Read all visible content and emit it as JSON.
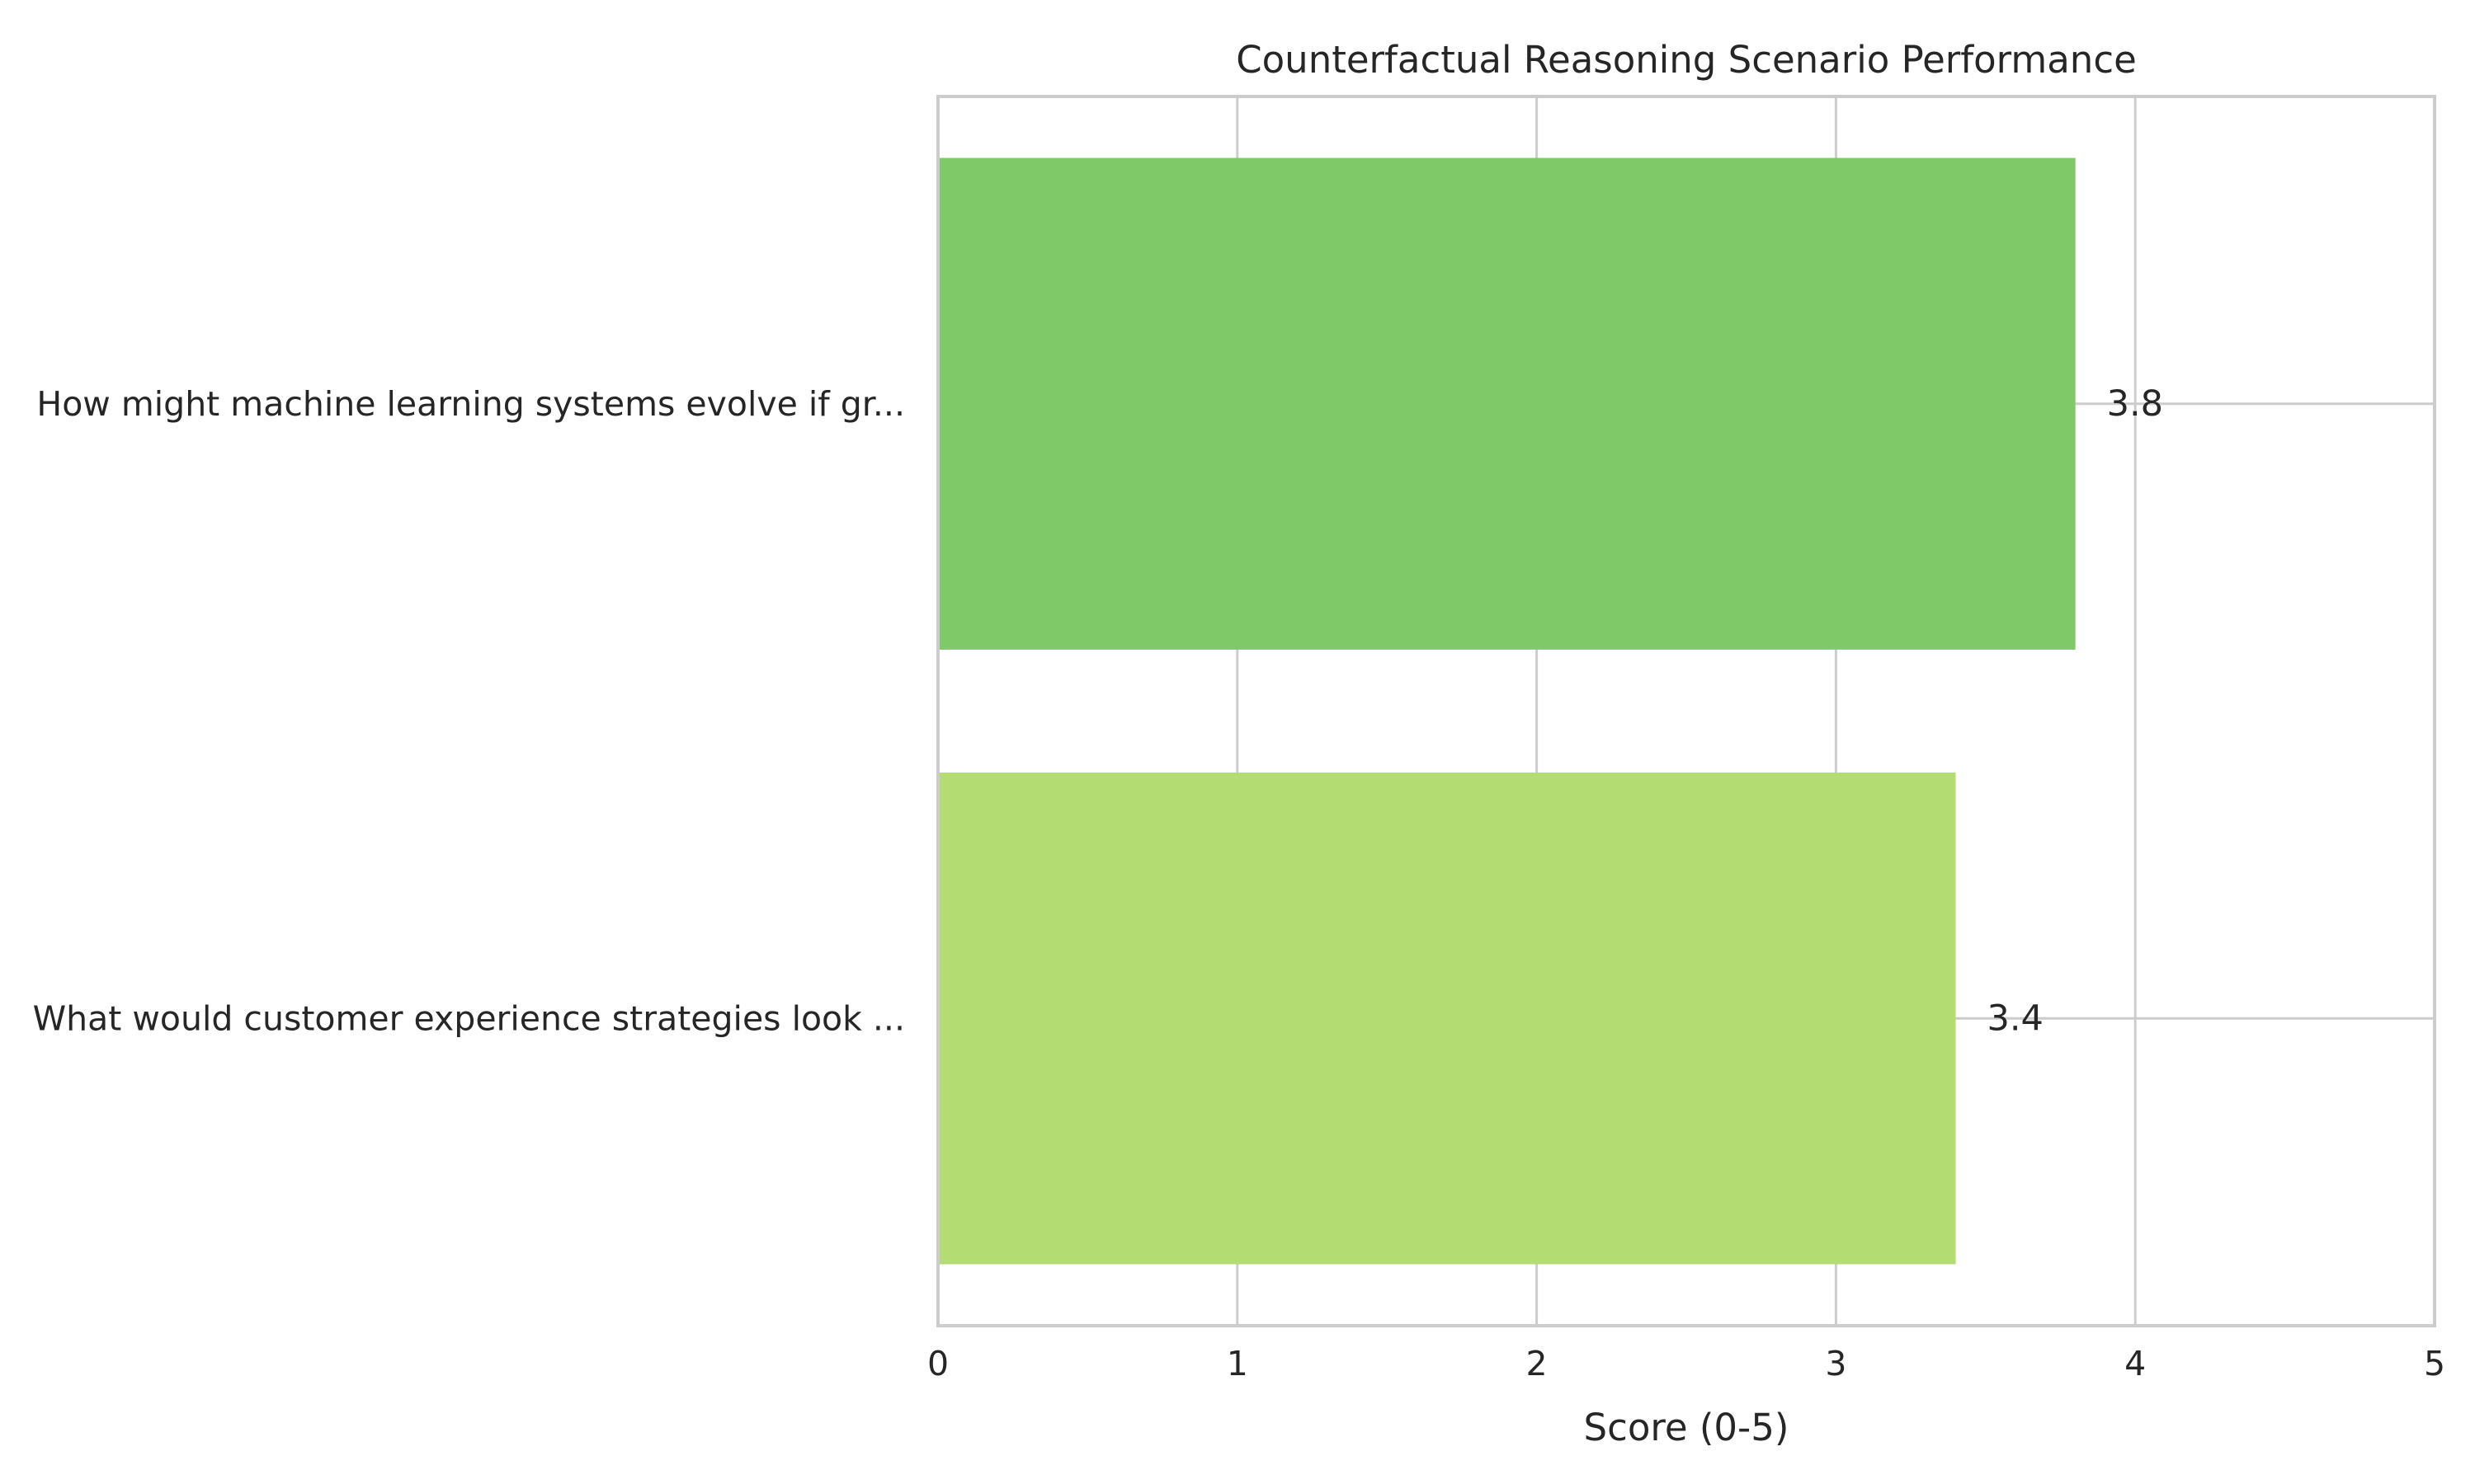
{
  "chart_data": {
    "type": "bar",
    "orientation": "horizontal",
    "title": "Counterfactual Reasoning Scenario Performance",
    "xlabel": "Score (0-5)",
    "ylabel": "",
    "xlim": [
      0,
      5
    ],
    "xticks": [
      0,
      1,
      2,
      3,
      4,
      5
    ],
    "grid": true,
    "categories": [
      "How might machine learning systems evolve if gr...",
      "What would customer experience strategies look ..."
    ],
    "values": [
      3.8,
      3.4
    ],
    "value_labels": [
      "3.8",
      "3.4"
    ],
    "colors": [
      "#7fc968",
      "#b3dd72"
    ],
    "grid_color": "#cccccc"
  }
}
